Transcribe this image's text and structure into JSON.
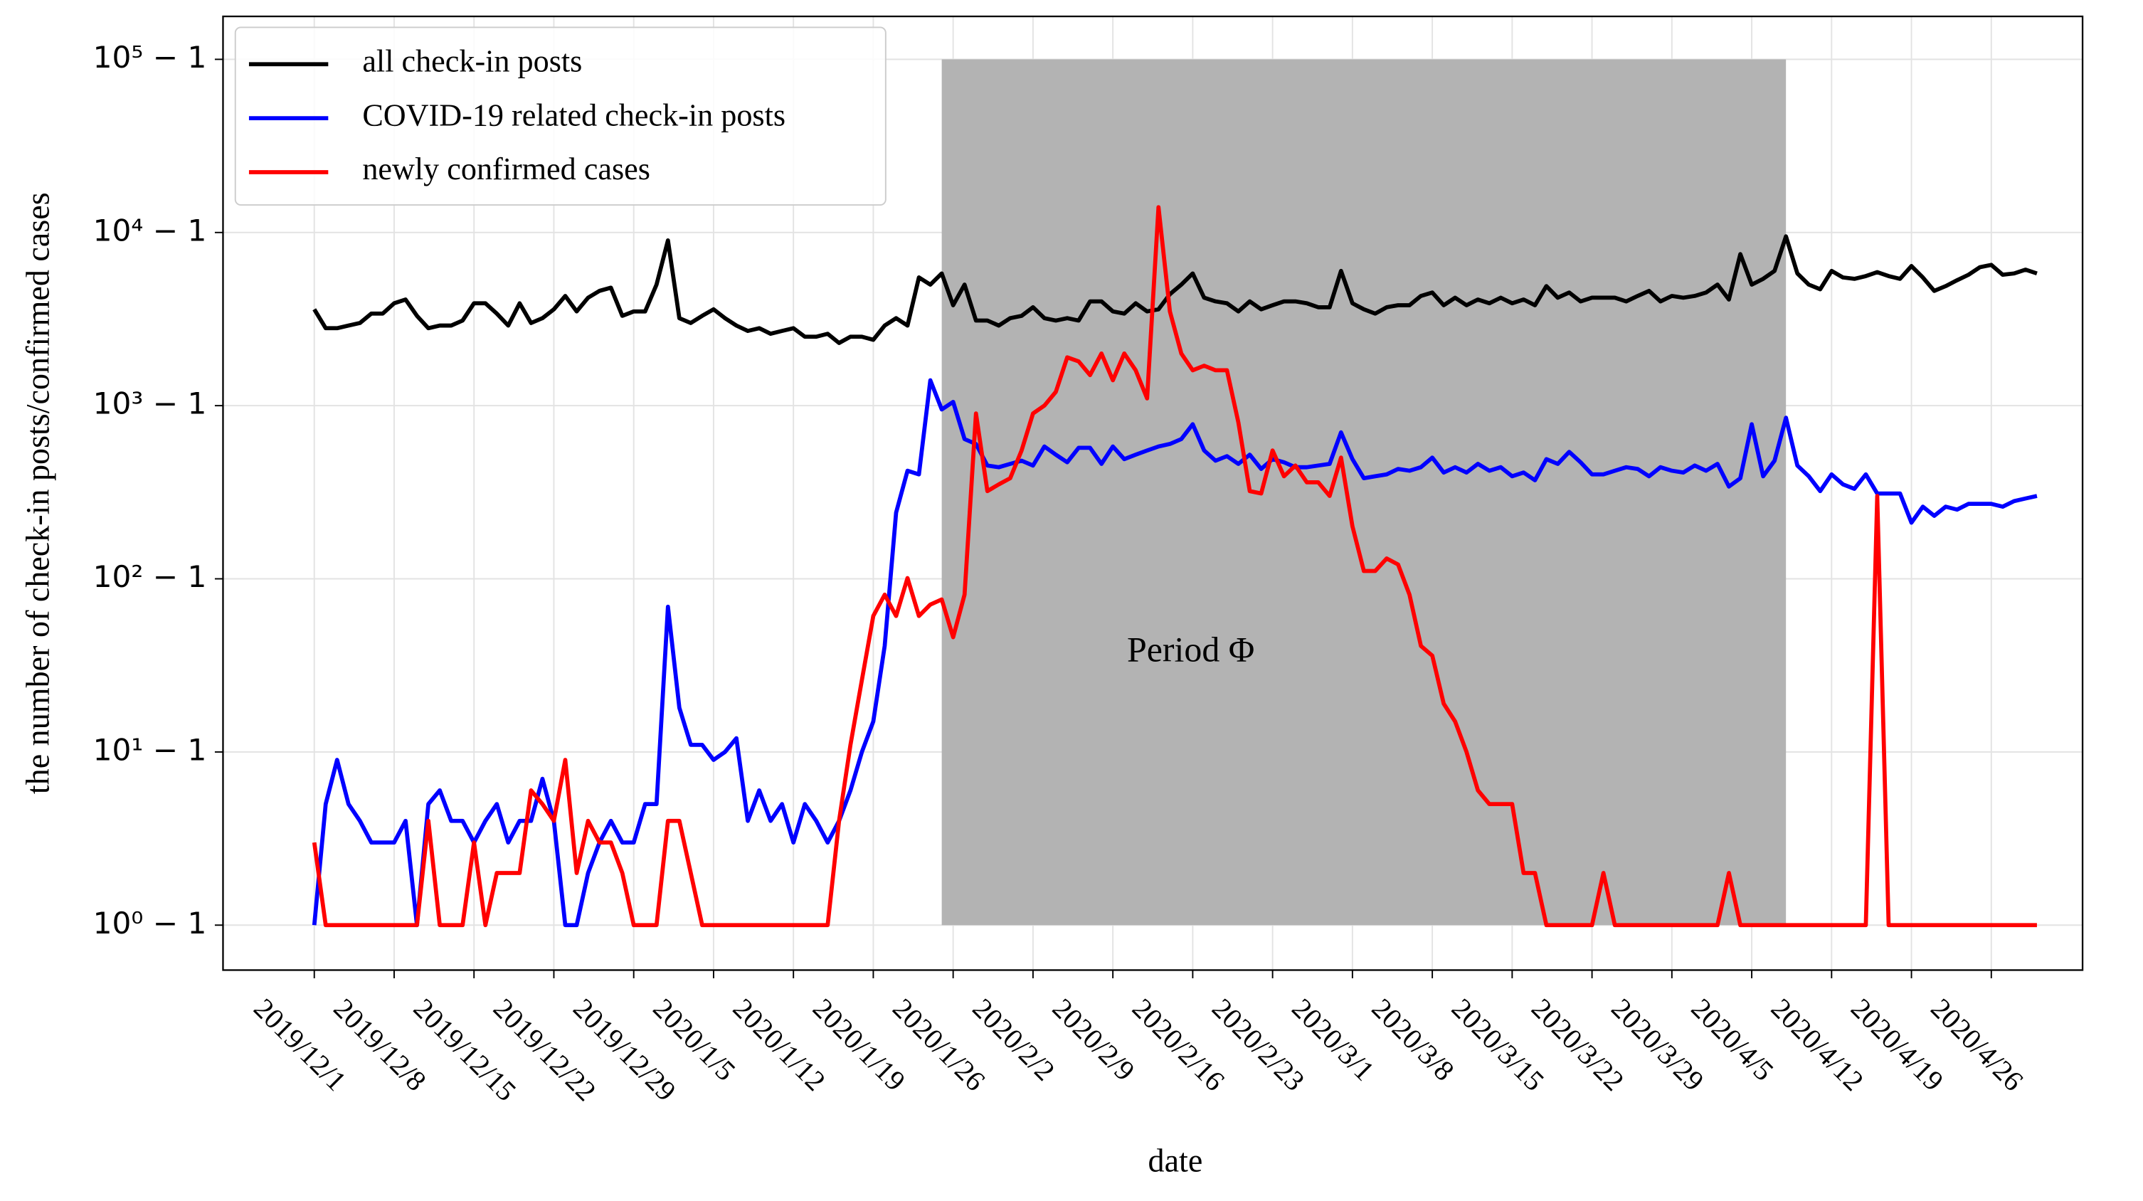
{
  "chart_data": {
    "type": "line",
    "xlabel": "date",
    "ylabel": "the number of check-in posts/confirmed cases",
    "yscale": "log1p",
    "grid": true,
    "legend": "upper left",
    "x": [
      "2019/12/1",
      "2019/12/2",
      "2019/12/3",
      "2019/12/4",
      "2019/12/5",
      "2019/12/6",
      "2019/12/7",
      "2019/12/8",
      "2019/12/9",
      "2019/12/10",
      "2019/12/11",
      "2019/12/12",
      "2019/12/13",
      "2019/12/14",
      "2019/12/15",
      "2019/12/16",
      "2019/12/17",
      "2019/12/18",
      "2019/12/19",
      "2019/12/20",
      "2019/12/21",
      "2019/12/22",
      "2019/12/23",
      "2019/12/24",
      "2019/12/25",
      "2019/12/26",
      "2019/12/27",
      "2019/12/28",
      "2019/12/29",
      "2019/12/30",
      "2019/12/31",
      "2020/1/1",
      "2020/1/2",
      "2020/1/3",
      "2020/1/4",
      "2020/1/5",
      "2020/1/6",
      "2020/1/7",
      "2020/1/8",
      "2020/1/9",
      "2020/1/10",
      "2020/1/11",
      "2020/1/12",
      "2020/1/13",
      "2020/1/14",
      "2020/1/15",
      "2020/1/16",
      "2020/1/17",
      "2020/1/18",
      "2020/1/19",
      "2020/1/20",
      "2020/1/21",
      "2020/1/22",
      "2020/1/23",
      "2020/1/24",
      "2020/1/25",
      "2020/1/26",
      "2020/1/27",
      "2020/1/28",
      "2020/1/29",
      "2020/1/30",
      "2020/1/31",
      "2020/2/1",
      "2020/2/2",
      "2020/2/3",
      "2020/2/4",
      "2020/2/5",
      "2020/2/6",
      "2020/2/7",
      "2020/2/8",
      "2020/2/9",
      "2020/2/10",
      "2020/2/11",
      "2020/2/12",
      "2020/2/13",
      "2020/2/14",
      "2020/2/15",
      "2020/2/16",
      "2020/2/17",
      "2020/2/18",
      "2020/2/19",
      "2020/2/20",
      "2020/2/21",
      "2020/2/22",
      "2020/2/23",
      "2020/2/24",
      "2020/2/25",
      "2020/2/26",
      "2020/2/27",
      "2020/2/28",
      "2020/2/29",
      "2020/3/1",
      "2020/3/2",
      "2020/3/3",
      "2020/3/4",
      "2020/3/5",
      "2020/3/6",
      "2020/3/7",
      "2020/3/8",
      "2020/3/9",
      "2020/3/10",
      "2020/3/11",
      "2020/3/12",
      "2020/3/13",
      "2020/3/14",
      "2020/3/15",
      "2020/3/16",
      "2020/3/17",
      "2020/3/18",
      "2020/3/19",
      "2020/3/20",
      "2020/3/21",
      "2020/3/22",
      "2020/3/23",
      "2020/3/24",
      "2020/3/25",
      "2020/3/26",
      "2020/3/27",
      "2020/3/28",
      "2020/3/29",
      "2020/3/30",
      "2020/3/31",
      "2020/4/1",
      "2020/4/2",
      "2020/4/3",
      "2020/4/4",
      "2020/4/5",
      "2020/4/6",
      "2020/4/7",
      "2020/4/8",
      "2020/4/9",
      "2020/4/10",
      "2020/4/11",
      "2020/4/12",
      "2020/4/13",
      "2020/4/14",
      "2020/4/15",
      "2020/4/16",
      "2020/4/17",
      "2020/4/18",
      "2020/4/19",
      "2020/4/20",
      "2020/4/21",
      "2020/4/22",
      "2020/4/23",
      "2020/4/24",
      "2020/4/25",
      "2020/4/26",
      "2020/4/27",
      "2020/4/28",
      "2020/4/29",
      "2020/4/30"
    ],
    "series": [
      {
        "name": "all check-in posts",
        "color": "#000000",
        "values": [
          3600,
          2800,
          2800,
          2900,
          3000,
          3400,
          3400,
          3900,
          4100,
          3300,
          2800,
          2900,
          2900,
          3100,
          3900,
          3900,
          3400,
          2900,
          3900,
          3000,
          3200,
          3600,
          4300,
          3500,
          4200,
          4600,
          4800,
          3300,
          3500,
          3500,
          5000,
          9000,
          3200,
          3000,
          3300,
          3600,
          3200,
          2900,
          2700,
          2800,
          2600,
          2700,
          2800,
          2500,
          2500,
          2600,
          2300,
          2500,
          2500,
          2400,
          2900,
          3200,
          2900,
          5500,
          5000,
          5800,
          3800,
          5000,
          3100,
          3100,
          2900,
          3200,
          3300,
          3700,
          3200,
          3100,
          3200,
          3100,
          4000,
          4000,
          3500,
          3400,
          3900,
          3500,
          3600,
          4400,
          5000,
          5800,
          4200,
          4000,
          3900,
          3500,
          4000,
          3600,
          3800,
          4000,
          4000,
          3900,
          3700,
          3700,
          6000,
          3900,
          3600,
          3400,
          3700,
          3800,
          3800,
          4300,
          4500,
          3800,
          4200,
          3800,
          4100,
          3900,
          4200,
          3900,
          4100,
          3800,
          4900,
          4200,
          4500,
          4000,
          4200,
          4200,
          4200,
          4000,
          4300,
          4600,
          4000,
          4300,
          4200,
          4300,
          4500,
          5000,
          4100,
          7500,
          5000,
          5400,
          6000,
          9500,
          5800,
          5000,
          4700,
          6000,
          5500,
          5400,
          5600,
          5900,
          5600,
          5400,
          6400,
          5500,
          4600,
          4900,
          5300,
          5700,
          6300,
          6500,
          5700,
          5800,
          6100,
          5800
        ]
      },
      {
        "name": "COVID-19 related check-in posts",
        "color": "#0000ff",
        "values": [
          0,
          4,
          8,
          4,
          3,
          2,
          2,
          2,
          3,
          0,
          4,
          5,
          3,
          3,
          2,
          3,
          4,
          2,
          3,
          3,
          6,
          3,
          0,
          0,
          1,
          2,
          3,
          2,
          2,
          4,
          4,
          68,
          17,
          10,
          10,
          8,
          9,
          11,
          3,
          5,
          3,
          4,
          2,
          4,
          3,
          2,
          3,
          5,
          9,
          14,
          40,
          240,
          420,
          400,
          1400,
          950,
          1050,
          640,
          600,
          450,
          440,
          460,
          480,
          450,
          580,
          520,
          470,
          570,
          570,
          460,
          580,
          490,
          520,
          550,
          580,
          600,
          640,
          780,
          550,
          480,
          510,
          460,
          520,
          430,
          490,
          470,
          440,
          440,
          450,
          460,
          700,
          490,
          380,
          390,
          400,
          430,
          420,
          440,
          500,
          410,
          440,
          410,
          460,
          420,
          440,
          390,
          410,
          370,
          490,
          460,
          540,
          470,
          400,
          400,
          420,
          440,
          430,
          390,
          440,
          420,
          410,
          450,
          420,
          460,
          340,
          380,
          780,
          390,
          480,
          850,
          450,
          390,
          320,
          400,
          350,
          330,
          400,
          310,
          310,
          310,
          210,
          260,
          230,
          260,
          250,
          270,
          270,
          270,
          260,
          280,
          290,
          300
        ]
      },
      {
        "name": "newly confirmed cases",
        "color": "#ff0000",
        "values": [
          2,
          0,
          0,
          0,
          0,
          0,
          0,
          0,
          0,
          0,
          3,
          0,
          0,
          0,
          2,
          0,
          1,
          1,
          1,
          5,
          4,
          3,
          8,
          1,
          3,
          2,
          2,
          1,
          0,
          0,
          0,
          3,
          3,
          1,
          0,
          0,
          0,
          0,
          0,
          0,
          0,
          0,
          0,
          0,
          0,
          0,
          3,
          10,
          25,
          60,
          80,
          60,
          100,
          60,
          70,
          75,
          45,
          80,
          900,
          320,
          350,
          380,
          550,
          900,
          1000,
          1200,
          1900,
          1800,
          1500,
          2000,
          1400,
          2000,
          1600,
          1100,
          14000,
          3500,
          2000,
          1600,
          1700,
          1600,
          1600,
          800,
          320,
          310,
          550,
          390,
          450,
          360,
          360,
          300,
          500,
          200,
          110,
          110,
          130,
          120,
          80,
          40,
          35,
          18,
          14,
          9,
          5,
          4,
          4,
          4,
          1,
          1,
          0,
          0,
          0,
          0,
          0,
          1,
          0,
          0,
          0,
          0,
          0,
          0,
          0,
          0,
          0,
          0,
          1,
          0,
          0,
          0,
          0,
          0,
          0,
          0,
          0,
          0,
          0,
          0,
          0,
          300,
          0,
          0,
          0,
          0,
          0,
          0,
          0,
          0,
          0,
          0,
          0,
          0,
          0,
          0
        ]
      }
    ],
    "xlim": [
      "2019/11/23",
      "2020/5/4"
    ],
    "xticks": [
      "2019/12/1",
      "2019/12/8",
      "2019/12/15",
      "2019/12/22",
      "2019/12/29",
      "2020/1/5",
      "2020/1/12",
      "2020/1/19",
      "2020/1/26",
      "2020/2/2",
      "2020/2/9",
      "2020/2/16",
      "2020/2/23",
      "2020/3/1",
      "2020/3/8",
      "2020/3/15",
      "2020/3/22",
      "2020/3/29",
      "2020/4/5",
      "2020/4/12",
      "2020/4/19",
      "2020/4/26"
    ],
    "ylim": [
      -0.45,
      177000
    ],
    "yticks": [
      {
        "value": 0,
        "label": "10⁰ − 1"
      },
      {
        "value": 9,
        "label": "10¹ − 1"
      },
      {
        "value": 99,
        "label": "10² − 1"
      },
      {
        "value": 999,
        "label": "10³ − 1"
      },
      {
        "value": 9999,
        "label": "10⁴ − 1"
      },
      {
        "value": 99999,
        "label": "10⁵ − 1"
      }
    ],
    "shaded_region": {
      "x": [
        "2020/1/25",
        "2020/4/8"
      ],
      "y": [
        0,
        99999
      ],
      "color": "#b3b3b3",
      "label": "Period Φ"
    }
  }
}
